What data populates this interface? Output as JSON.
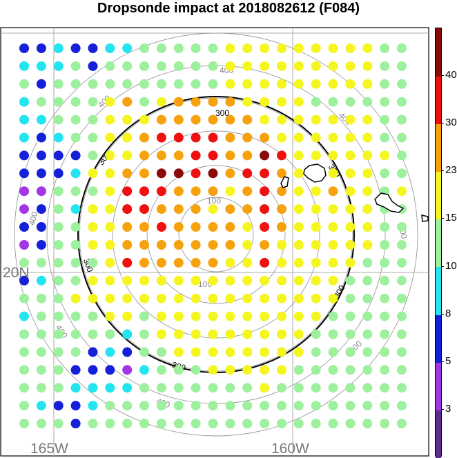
{
  "chart_data": {
    "type": "scatter",
    "title": "Dropsonde impact at 2018082612 (F084)",
    "axis_labels": {
      "lon": [
        "165W",
        "160W"
      ],
      "lat": [
        "20N"
      ]
    },
    "range_rings": {
      "labels": [
        "100",
        "300",
        "400"
      ],
      "bold_ring": "300"
    },
    "colorbar": {
      "colors": [
        "#5b2d8e",
        "#a335e6",
        "#1520d8",
        "#22e5f0",
        "#9df09d",
        "#f5f520",
        "#f5a20e",
        "#f01010",
        "#8b0a0a"
      ],
      "labels": [
        "3",
        "5",
        "8",
        "10",
        "15",
        "23",
        "30",
        "40"
      ]
    },
    "grid": {
      "columns": 23,
      "rows": 22,
      "values": [
        [
          5,
          5,
          8,
          5,
          5,
          8,
          8,
          15,
          15,
          15,
          15,
          15,
          23,
          23,
          23,
          23,
          23,
          23,
          23,
          23,
          23,
          15,
          15
        ],
        [
          8,
          8,
          8,
          15,
          5,
          15,
          15,
          15,
          15,
          15,
          15,
          15,
          23,
          23,
          23,
          23,
          23,
          23,
          23,
          23,
          23,
          15,
          15
        ],
        [
          15,
          5,
          15,
          15,
          15,
          15,
          15,
          15,
          15,
          15,
          15,
          15,
          23,
          23,
          23,
          23,
          23,
          23,
          23,
          23,
          23,
          15,
          15
        ],
        [
          8,
          15,
          15,
          15,
          15,
          23,
          30,
          15,
          23,
          30,
          30,
          30,
          30,
          23,
          23,
          23,
          23,
          15,
          15,
          15,
          15,
          15,
          15
        ],
        [
          8,
          8,
          15,
          15,
          15,
          23,
          23,
          23,
          30,
          30,
          30,
          30,
          30,
          30,
          23,
          23,
          23,
          23,
          23,
          23,
          23,
          15,
          15
        ],
        [
          8,
          5,
          8,
          15,
          15,
          23,
          23,
          30,
          40,
          40,
          40,
          40,
          30,
          30,
          30,
          23,
          23,
          23,
          23,
          23,
          23,
          15,
          15
        ],
        [
          5,
          5,
          5,
          5,
          15,
          23,
          23,
          30,
          30,
          30,
          40,
          40,
          30,
          30,
          46,
          40,
          23,
          23,
          23,
          23,
          23,
          23,
          15
        ],
        [
          5,
          5,
          5,
          8,
          23,
          23,
          30,
          30,
          46,
          46,
          40,
          46,
          30,
          40,
          40,
          30,
          23,
          23,
          23,
          23,
          23,
          15,
          15
        ],
        [
          3,
          3,
          15,
          15,
          15,
          23,
          40,
          40,
          40,
          30,
          30,
          30,
          23,
          30,
          40,
          30,
          23,
          23,
          30,
          23,
          23,
          15,
          23
        ],
        [
          3,
          5,
          15,
          8,
          23,
          23,
          40,
          40,
          30,
          30,
          30,
          23,
          30,
          30,
          40,
          30,
          23,
          23,
          23,
          23,
          23,
          15,
          15
        ],
        [
          5,
          5,
          15,
          15,
          23,
          23,
          30,
          30,
          40,
          30,
          30,
          30,
          30,
          23,
          40,
          30,
          23,
          23,
          23,
          23,
          23,
          15,
          15
        ],
        [
          3,
          5,
          15,
          15,
          23,
          23,
          30,
          30,
          30,
          30,
          30,
          30,
          30,
          23,
          30,
          23,
          23,
          23,
          23,
          23,
          23,
          15,
          15
        ],
        [
          15,
          15,
          15,
          15,
          15,
          23,
          40,
          30,
          30,
          30,
          30,
          30,
          23,
          23,
          40,
          23,
          23,
          23,
          23,
          23,
          15,
          15,
          15
        ],
        [
          5,
          8,
          15,
          15,
          23,
          23,
          23,
          23,
          23,
          23,
          23,
          23,
          23,
          23,
          23,
          23,
          23,
          23,
          23,
          15,
          15,
          15,
          15
        ],
        [
          15,
          15,
          15,
          23,
          23,
          23,
          23,
          23,
          23,
          23,
          23,
          23,
          23,
          23,
          23,
          23,
          23,
          23,
          23,
          15,
          15,
          15,
          15
        ],
        [
          8,
          15,
          15,
          15,
          15,
          23,
          23,
          15,
          23,
          23,
          23,
          23,
          23,
          23,
          23,
          23,
          23,
          23,
          15,
          15,
          15,
          15,
          15
        ],
        [
          15,
          15,
          15,
          15,
          15,
          15,
          8,
          15,
          23,
          23,
          23,
          23,
          23,
          23,
          23,
          23,
          23,
          15,
          15,
          15,
          15,
          15,
          15
        ],
        [
          15,
          15,
          15,
          15,
          5,
          8,
          5,
          15,
          15,
          23,
          23,
          23,
          23,
          23,
          23,
          23,
          23,
          15,
          15,
          15,
          15,
          15,
          15
        ],
        [
          15,
          15,
          15,
          5,
          5,
          5,
          3,
          8,
          15,
          15,
          15,
          23,
          23,
          23,
          23,
          23,
          15,
          15,
          15,
          15,
          15,
          15,
          15
        ],
        [
          15,
          15,
          15,
          8,
          8,
          8,
          8,
          15,
          15,
          15,
          15,
          15,
          15,
          15,
          23,
          15,
          15,
          15,
          15,
          15,
          15,
          15,
          15
        ],
        [
          15,
          8,
          5,
          5,
          8,
          15,
          15,
          15,
          15,
          15,
          15,
          15,
          15,
          15,
          15,
          15,
          15,
          15,
          15,
          15,
          15,
          15,
          15
        ],
        [
          15,
          15,
          15,
          5,
          15,
          15,
          15,
          15,
          15,
          15,
          15,
          15,
          15,
          15,
          15,
          15,
          15,
          15,
          15,
          15,
          15,
          15,
          15
        ]
      ]
    }
  }
}
